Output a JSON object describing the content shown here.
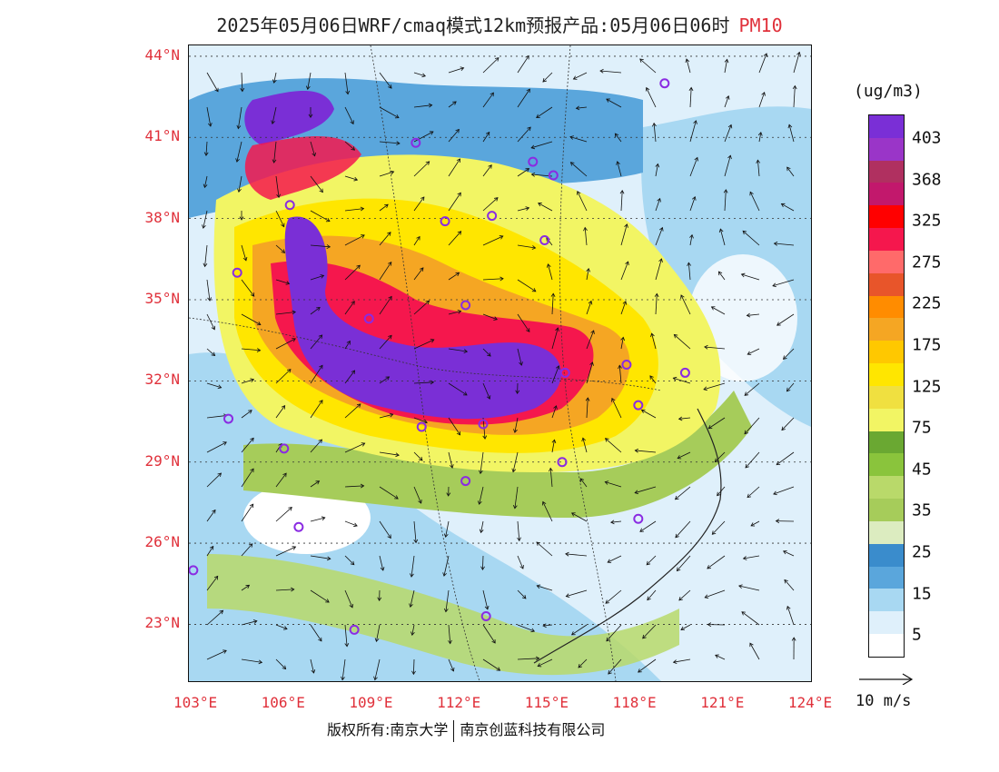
{
  "title": {
    "main": "2025年05月06日WRF/cmaq模式12km预报产品:05月06日06时",
    "pollutant": "PM10"
  },
  "map": {
    "lat_labels": [
      "44°N",
      "41°N",
      "38°N",
      "35°N",
      "32°N",
      "29°N",
      "26°N",
      "23°N"
    ],
    "lon_labels": [
      "103°E",
      "106°E",
      "109°E",
      "112°E",
      "115°E",
      "118°E",
      "121°E",
      "124°E"
    ],
    "lat_values": [
      44,
      41,
      38,
      35,
      32,
      29,
      26,
      23
    ],
    "lon_values": [
      103,
      106,
      109,
      112,
      115,
      118,
      121,
      124
    ]
  },
  "legend": {
    "unit": "(ug/m3)",
    "labels": [
      "403",
      "368",
      "325",
      "275",
      "225",
      "175",
      "125",
      "75",
      "45",
      "35",
      "25",
      "15",
      "5"
    ],
    "colors": [
      "#7a2fd6",
      "#9a35c8",
      "#b03060",
      "#c2186c",
      "#ff0000",
      "#f5174d",
      "#ff6a6a",
      "#e8552a",
      "#ff8c00",
      "#f5a623",
      "#ffc800",
      "#ffe600",
      "#f0e040",
      "#f2f564",
      "#6aa832",
      "#8ac43c",
      "#b9d96a",
      "#a6cc5a",
      "#dcecc0",
      "#3a8ccc",
      "#5aa6dc",
      "#a8d8f2",
      "#dff0fb",
      "#ffffff"
    ]
  },
  "wind_key": {
    "label": "10 m/s"
  },
  "footer": {
    "left": "版权所有:南京大学",
    "right": "南京创蓝科技有限公司"
  }
}
